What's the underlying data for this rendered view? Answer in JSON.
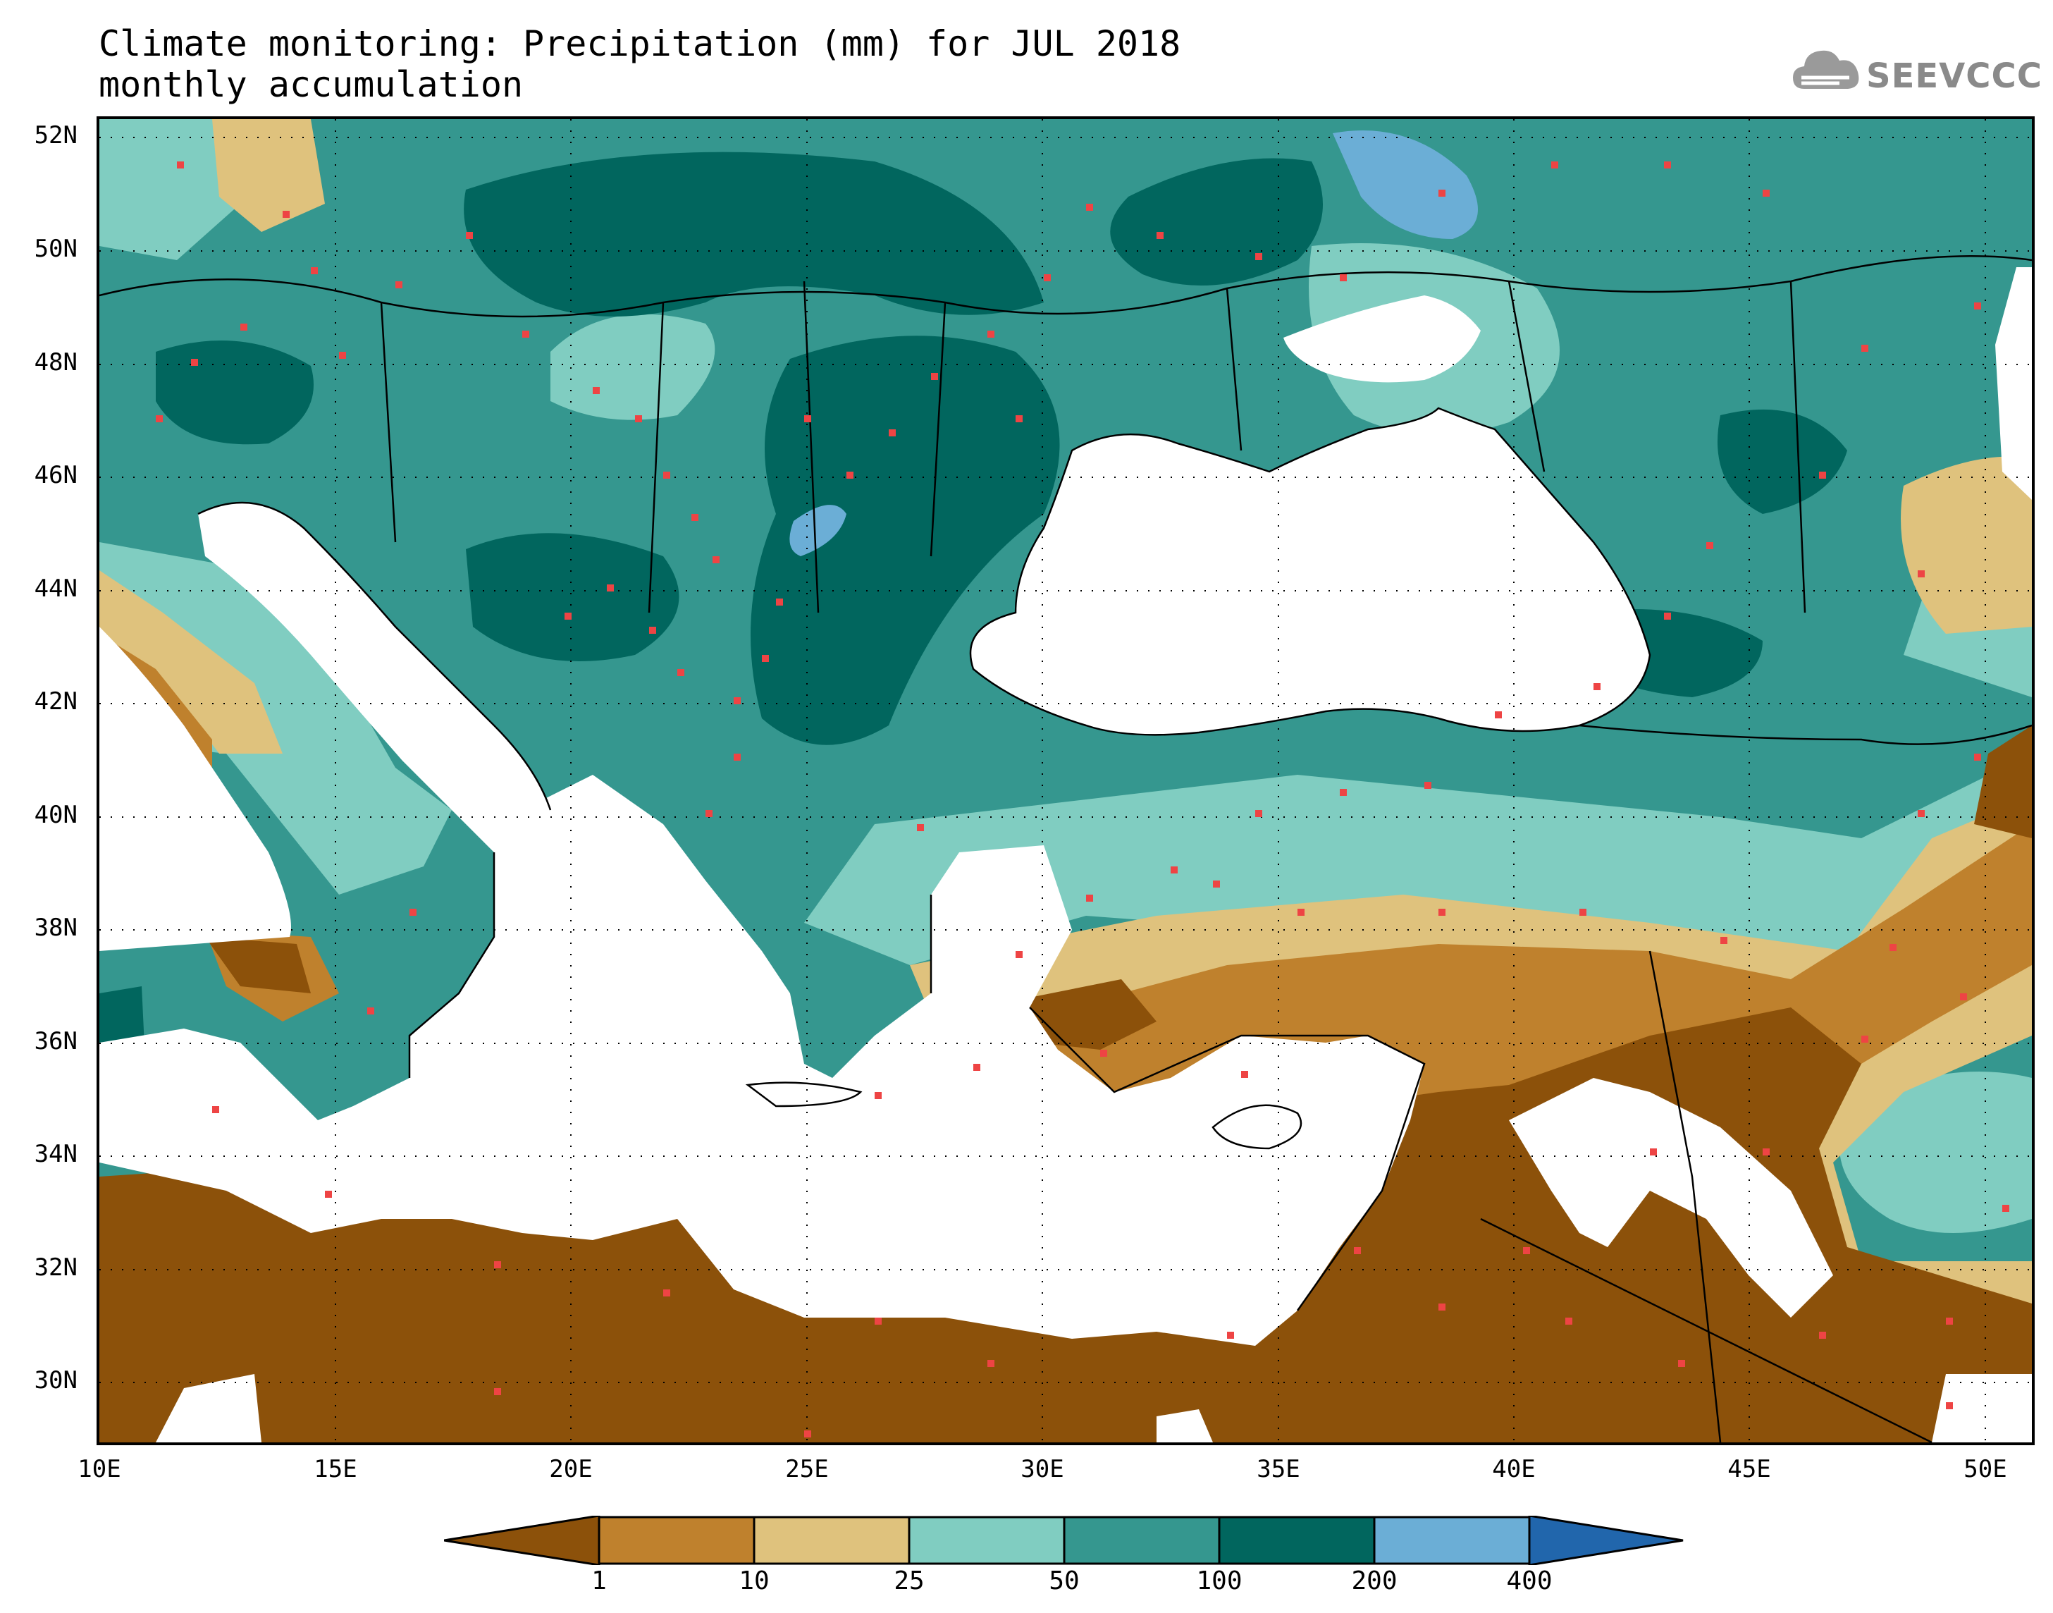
{
  "title": {
    "line1": "Climate monitoring: Precipitation (mm) for JUL 2018",
    "line2": "monthly accumulation"
  },
  "logo": {
    "text": "SEEVCCC",
    "icon": "cloud-icon",
    "color": "#8a8a8a"
  },
  "map": {
    "lon_range": [
      10,
      51
    ],
    "lat_range": [
      29,
      52.5
    ],
    "lat_ticks": [
      "52N",
      "50N",
      "48N",
      "46N",
      "44N",
      "42N",
      "40N",
      "38N",
      "36N",
      "34N",
      "32N",
      "30N"
    ],
    "lon_ticks": [
      "10E",
      "15E",
      "20E",
      "25E",
      "30E",
      "35E",
      "40E",
      "45E",
      "50E"
    ],
    "gridlines": "dotted",
    "station_marker_color": "#ee4444"
  },
  "colorbar": {
    "labels": [
      "1",
      "10",
      "25",
      "50",
      "100",
      "200",
      "400"
    ],
    "colors": [
      "#8c510a",
      "#bf812d",
      "#dfc27d",
      "#80cdc1",
      "#35978f",
      "#01665e",
      "#6baed6",
      "#2166ac"
    ],
    "color_meaning": [
      "<1",
      "1-10",
      "10-25",
      "25-50",
      "50-100",
      "100-200",
      "200-400",
      ">400"
    ]
  }
}
